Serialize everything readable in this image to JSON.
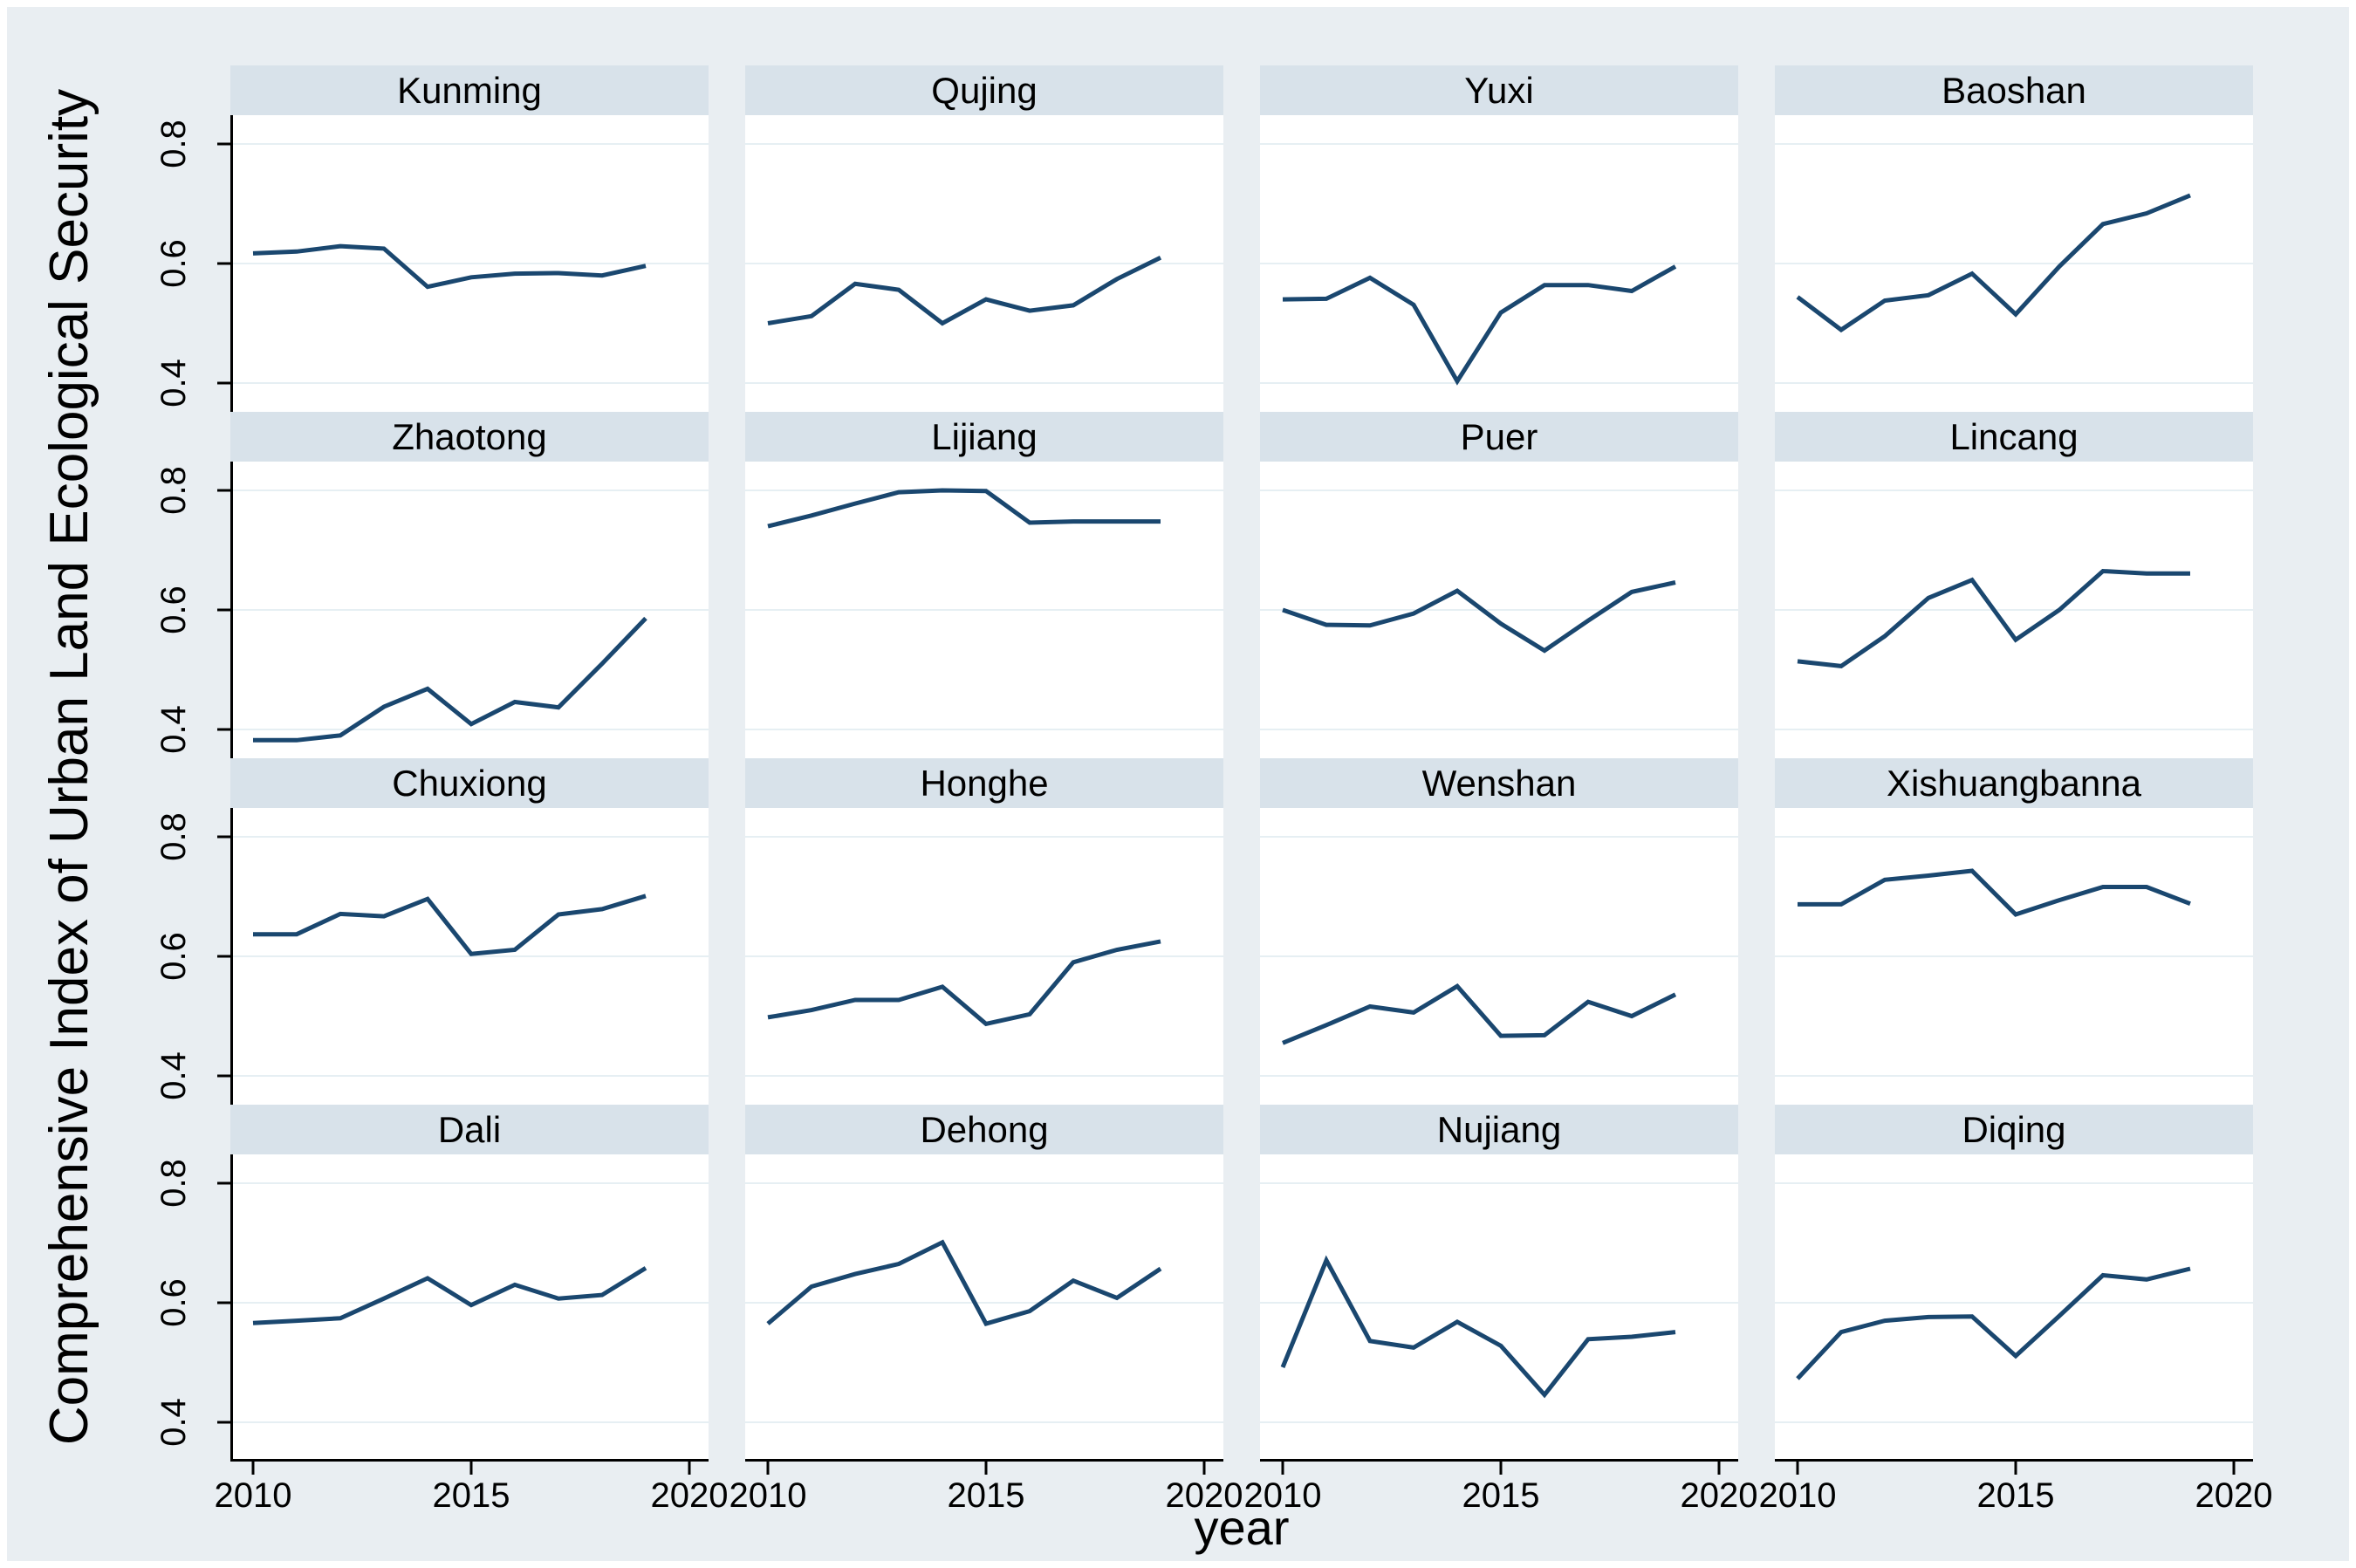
{
  "figure": {
    "ylabel": "Comprehensive Index of Urban Land Ecological Security",
    "xlabel": "year"
  },
  "axes": {
    "x_tick_labels": [
      "2010",
      "2015",
      "2020"
    ],
    "y_tick_labels": [
      "0.8",
      "0.6",
      "0.4"
    ]
  },
  "colors": {
    "line": "#1a476f",
    "band": "#d8e2ea",
    "background": "#e9eef2",
    "gridline": "#e6eff3",
    "axis": "#000000"
  },
  "chart_data": {
    "type": "line",
    "layout": "4x4 small multiples",
    "title": "",
    "xlabel": "year",
    "ylabel": "Comprehensive Index of Urban Land Ecological Security",
    "x": [
      2010,
      2011,
      2012,
      2013,
      2014,
      2015,
      2016,
      2017,
      2018,
      2019
    ],
    "x_ticks": [
      2010,
      2015,
      2020
    ],
    "y_ticks": [
      0.4,
      0.6,
      0.8
    ],
    "xlim": [
      2009.5,
      2020.4
    ],
    "ylim": [
      0.334,
      0.848
    ],
    "grid": "horizontal",
    "legend": "none",
    "series": [
      {
        "name": "Kunming",
        "values": [
          0.617,
          0.62,
          0.629,
          0.625,
          0.561,
          0.577,
          0.583,
          0.584,
          0.58,
          0.596
        ]
      },
      {
        "name": "Qujing",
        "values": [
          0.5,
          0.512,
          0.566,
          0.556,
          0.5,
          0.54,
          0.521,
          0.53,
          0.574,
          0.61
        ]
      },
      {
        "name": "Yuxi",
        "values": [
          0.54,
          0.541,
          0.576,
          0.531,
          0.403,
          0.518,
          0.564,
          0.564,
          0.554,
          0.595
        ]
      },
      {
        "name": "Baoshan",
        "values": [
          0.544,
          0.489,
          0.538,
          0.547,
          0.583,
          0.515,
          0.595,
          0.666,
          0.684,
          0.714
        ]
      },
      {
        "name": "Zhaotong",
        "values": [
          0.382,
          0.382,
          0.39,
          0.438,
          0.468,
          0.409,
          0.446,
          0.437,
          0.51,
          0.586
        ]
      },
      {
        "name": "Lijiang",
        "values": [
          0.74,
          0.758,
          0.778,
          0.797,
          0.8,
          0.799,
          0.746,
          0.748,
          0.748,
          0.748
        ]
      },
      {
        "name": "Puer",
        "values": [
          0.6,
          0.575,
          0.574,
          0.594,
          0.632,
          0.577,
          0.532,
          0.582,
          0.63,
          0.646
        ]
      },
      {
        "name": "Lincang",
        "values": [
          0.514,
          0.506,
          0.556,
          0.62,
          0.65,
          0.55,
          0.6,
          0.665,
          0.661,
          0.661
        ]
      },
      {
        "name": "Chuxiong",
        "values": [
          0.637,
          0.637,
          0.671,
          0.667,
          0.696,
          0.604,
          0.611,
          0.67,
          0.679,
          0.701
        ]
      },
      {
        "name": "Honghe",
        "values": [
          0.498,
          0.51,
          0.527,
          0.527,
          0.549,
          0.487,
          0.503,
          0.59,
          0.611,
          0.625
        ]
      },
      {
        "name": "Wenshan",
        "values": [
          0.455,
          0.485,
          0.516,
          0.506,
          0.55,
          0.467,
          0.468,
          0.524,
          0.5,
          0.536
        ]
      },
      {
        "name": "Xishuangbanna",
        "values": [
          0.687,
          0.687,
          0.728,
          0.735,
          0.743,
          0.67,
          0.694,
          0.716,
          0.716,
          0.688
        ]
      },
      {
        "name": "Dali",
        "values": [
          0.566,
          0.57,
          0.574,
          0.607,
          0.641,
          0.596,
          0.63,
          0.607,
          0.613,
          0.658
        ]
      },
      {
        "name": "Dehong",
        "values": [
          0.565,
          0.627,
          0.648,
          0.665,
          0.701,
          0.565,
          0.586,
          0.637,
          0.608,
          0.657
        ]
      },
      {
        "name": "Nujiang",
        "values": [
          0.492,
          0.671,
          0.536,
          0.525,
          0.568,
          0.528,
          0.446,
          0.539,
          0.543,
          0.551
        ]
      },
      {
        "name": "Diqing",
        "values": [
          0.473,
          0.551,
          0.57,
          0.576,
          0.577,
          0.511,
          0.578,
          0.646,
          0.639,
          0.657
        ]
      }
    ]
  }
}
